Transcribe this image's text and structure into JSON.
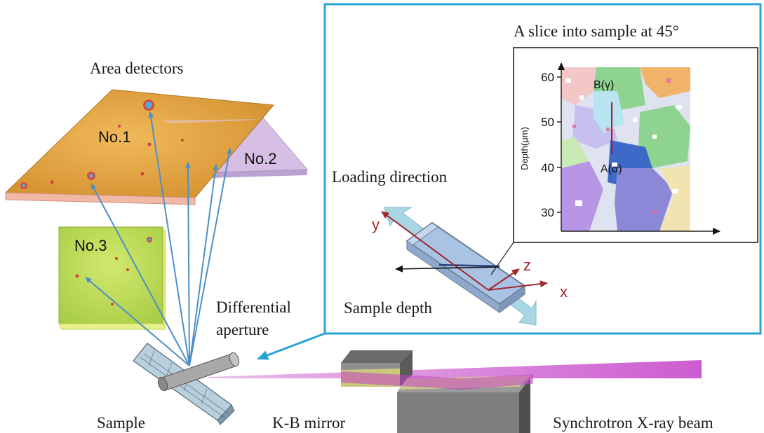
{
  "labels": {
    "area_detectors": "Area detectors",
    "no1": "No.1",
    "no2": "No.2",
    "no3": "No.3",
    "differential_line1": "Differential",
    "differential_line2": "aperture",
    "sample": "Sample",
    "kb_mirror": "K-B mirror",
    "synchrotron": "Synchrotron X-ray beam",
    "loading_direction": "Loading direction",
    "sample_depth": "Sample depth",
    "slice_title": "A slice into sample at 45°"
  },
  "axes3d": {
    "x": "x",
    "y": "y",
    "z": "z"
  },
  "inset": {
    "ylabel": "Depth(μm)",
    "yticks": [
      "60",
      "50",
      "40",
      "30"
    ],
    "point_b": "B(γ)",
    "point_a": "A(α)"
  },
  "colors": {
    "frame": "#29a3d6",
    "beam": "#c43fc8",
    "detector1": "#e9a23e",
    "detector2": "#c9a9dc",
    "detector3": "#b8d95a",
    "ray": "#4f8fc4",
    "axis": "#a0282a"
  }
}
